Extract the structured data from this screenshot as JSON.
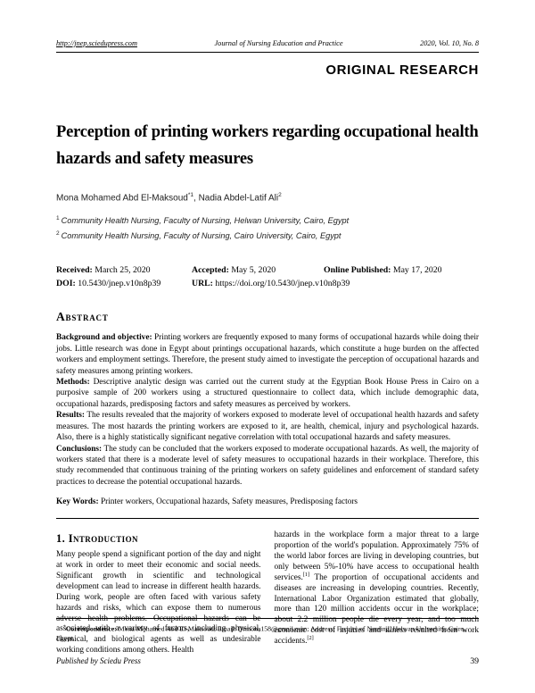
{
  "page": {
    "header": {
      "left_url": "http://jnep.sciedupress.com",
      "center": "Journal of Nursing Education and Practice",
      "right": "2020, Vol. 10, No. 8"
    },
    "badge": "ORIGINAL RESEARCH",
    "title": "Perception of printing workers regarding occupational health hazards and safety measures",
    "authors_sep": ",",
    "authors": [
      {
        "name": "Mona Mohamed Abd El-Maksoud",
        "sup": "*1"
      },
      {
        "name": "Nadia Abdel-Latif Ali",
        "sup": "2"
      }
    ],
    "affiliations": [
      {
        "sup": "1",
        "text": "Community Health Nursing, Faculty of Nursing, Helwan University, Cairo, Egypt"
      },
      {
        "sup": "2",
        "text": "Community Health Nursing, Faculty of Nursing, Cairo University, Cairo, Egypt"
      }
    ],
    "meta": {
      "received_label": "Received:",
      "received_value": "March 25, 2020",
      "accepted_label": "Accepted:",
      "accepted_value": "May 5, 2020",
      "online_label": "Online Published:",
      "online_value": "May 17, 2020",
      "doi_label": "DOI:",
      "doi_value": "10.5430/jnep.v10n8p39",
      "url_label": "URL:",
      "url_value": "https://doi.org/10.5430/jnep.v10n8p39"
    },
    "abstract": {
      "heading": "Abstract",
      "sections": [
        {
          "label": "Background and objective:",
          "text": "Printing workers are frequently exposed to many forms of occupational hazards while doing their jobs. Little research was done in Egypt about printings occupational hazards, which constitute a huge burden on the affected workers and employment settings. Therefore, the present study aimed to investigate the perception of occupational hazards and safety measures among printing workers."
        },
        {
          "label": "Methods:",
          "text": "Descriptive analytic design was carried out the current study at the Egyptian Book House Press in Cairo on a purposive sample of 200 workers using a structured questionnaire to collect data, which include demographic data, occupational hazards, predisposing factors and safety measures as perceived by workers."
        },
        {
          "label": "Results:",
          "text": "The results revealed that the majority of workers exposed to moderate level of occupational health hazards and safety measures. The most hazards the printing workers are exposed to it, are health, chemical, injury and psychological hazards. Also, there is a highly statistically significant negative correlation with total occupational hazards and safety measures."
        },
        {
          "label": "Conclusions:",
          "text": "The study can be concluded that the workers exposed to moderate occupational hazards. As well, the majority of workers stated that there is a moderate level of safety measures to occupational hazards in their workplace. Therefore, this study recommended that continuous training of the printing workers on safety guidelines and enforcement of standard safety practices to decrease the potential occupational hazards."
        }
      ],
      "keywords_label": "Key Words:",
      "keywords": "Printer workers, Occupational hazards, Safety measures, Predisposing factors"
    },
    "introduction": {
      "heading": "1. Introduction",
      "left_text": "Many people spend a significant portion of the day and night at work in order to meet their economic and social needs. Significant growth in scientific and technological development can lead to increase in different health hazards. During work, people are often faced with various safety hazards and risks, which can expose them to numerous adverse health problems. Occupational hazards can be associated with a variety of factors, including physical, chemical, and biological agents as well as undesirable working conditions among others. Health",
      "right": {
        "p1": "hazards in the workplace form a major threat to a large proportion of the world's population. Approximately 75% of the world labor forces are living in developing countries, but only between 5%-10% have access to occupational health services.",
        "ref1": "[1]",
        "p2": "The proportion of occupational accidents and diseases are increasing in developing countries. Recently, International Labor Organization estimated that globally, more than 120 million accidents occur in the workplace; about 2.2 million people die every year, and too much economic cost of injuries and illness resulted from work accidents.",
        "ref2": "[2]"
      }
    },
    "footnote": {
      "marker": "*",
      "label": "Correspondence:",
      "text": "Mona Mohamed Abd El-Maksoud; Email: Drmona158@gmail.com; Address: Faculty of Nursing, Helwan University, Cairo, Egypt."
    },
    "footer": {
      "publisher": "Published by Sciedu Press",
      "page_number": "39"
    }
  }
}
